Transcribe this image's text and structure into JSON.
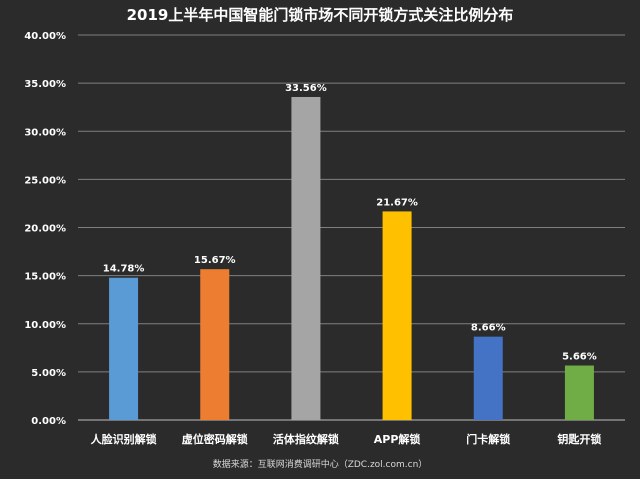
{
  "chart_data": {
    "type": "bar",
    "title": "2019上半年中国智能门锁市场不同开锁方式关注比例分布",
    "categories": [
      "人脸识别解锁",
      "虚位密码解锁",
      "活体指纹解锁",
      "APP解锁",
      "门卡解锁",
      "钥匙开锁"
    ],
    "values": [
      14.78,
      15.67,
      33.56,
      21.67,
      8.66,
      5.66
    ],
    "data_labels": [
      "14.78%",
      "15.67%",
      "33.56%",
      "21.67%",
      "8.66%",
      "5.66%"
    ],
    "colors": [
      "#5b9bd5",
      "#ed7d31",
      "#a5a5a5",
      "#ffc000",
      "#4472c4",
      "#70ad47"
    ],
    "ylim": [
      0,
      40
    ],
    "yticks": [
      0,
      5,
      10,
      15,
      20,
      25,
      30,
      35,
      40
    ],
    "ytick_labels": [
      "0.00%",
      "5.00%",
      "10.00%",
      "15.00%",
      "20.00%",
      "25.00%",
      "30.00%",
      "35.00%",
      "40.00%"
    ],
    "grid": true,
    "xlabel": "",
    "ylabel": ""
  },
  "source_note": "数据来源：互联网消费调研中心（ZDC.zol.com.cn）"
}
